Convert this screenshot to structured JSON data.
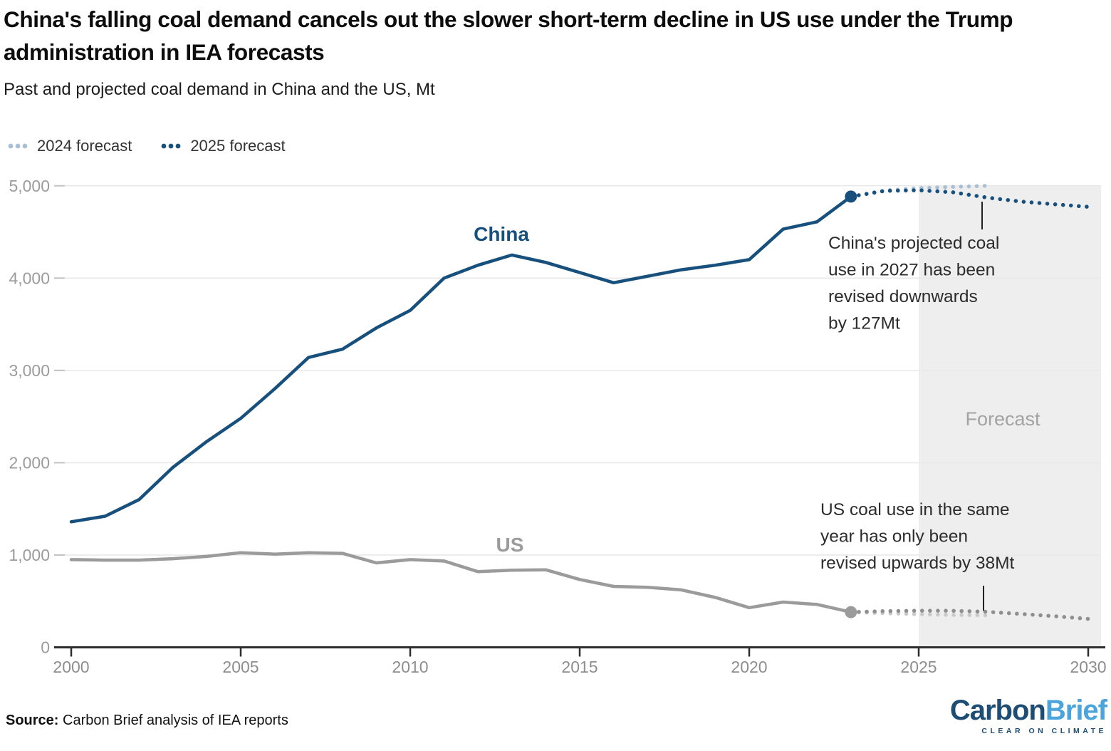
{
  "header": {
    "title": "China's falling coal demand cancels out the slower short-term decline in US use under the Trump administration in IEA forecasts",
    "subtitle": "Past and projected coal demand in China and the US, Mt"
  },
  "legend": {
    "items": [
      {
        "label": "2024 forecast",
        "color": "#a9c0d4"
      },
      {
        "label": "2025 forecast",
        "color": "#17507c"
      }
    ]
  },
  "annotations": [
    {
      "id": "china",
      "lines": [
        "China's projected coal",
        "use in 2027 has been",
        "revised downwards",
        "by 127Mt"
      ]
    },
    {
      "id": "us",
      "lines": [
        "US coal use in the same",
        "year has only been",
        "revised upwards by 38Mt"
      ]
    }
  ],
  "source": {
    "label": "Source:",
    "text": "Carbon Brief analysis of IEA reports"
  },
  "logo": {
    "part1": "Carbon",
    "part2": "Brief",
    "tagline": "CLEAR ON CLIMATE"
  },
  "chart_data": {
    "type": "line",
    "unit": "Mt",
    "xlim": [
      2000,
      2030
    ],
    "ylim": [
      0,
      5000
    ],
    "x_ticks": [
      2000,
      2005,
      2010,
      2015,
      2020,
      2025,
      2030
    ],
    "y_ticks": [
      0,
      1000,
      2000,
      3000,
      4000,
      5000
    ],
    "grid": true,
    "forecast_region": {
      "start": 2025,
      "end": 2030,
      "label": "Forecast",
      "fill": "#eeeeee"
    },
    "colors": {
      "china": "#17507c",
      "china_light": "#a9c0d4",
      "us": "#9b9b9b",
      "us_light": "#c9c9c9"
    },
    "series": [
      {
        "name": "China 2024 forecast",
        "style": "dotted",
        "color": "#a9c0d4",
        "years": [
          2023,
          2024,
          2025,
          2026,
          2027
        ],
        "values": [
          4883,
          4950,
          4975,
          4988,
          5000
        ]
      },
      {
        "name": "US 2024 forecast",
        "style": "dotted",
        "color": "#c9c9c9",
        "years": [
          2023,
          2024,
          2025,
          2026,
          2027
        ],
        "values": [
          381,
          370,
          359,
          351,
          347
        ]
      },
      {
        "name": "China 2025 forecast",
        "style": "dotted",
        "color": "#17507c",
        "years": [
          2023,
          2024,
          2025,
          2026,
          2027,
          2028,
          2029,
          2030
        ],
        "values": [
          4883,
          4945,
          4952,
          4930,
          4873,
          4830,
          4800,
          4772
        ]
      },
      {
        "name": "US 2025 forecast",
        "style": "dotted",
        "color": "#8f8f8f",
        "years": [
          2023,
          2024,
          2025,
          2026,
          2027,
          2028,
          2029,
          2030
        ],
        "values": [
          381,
          392,
          397,
          396,
          385,
          362,
          337,
          308
        ]
      },
      {
        "name": "China",
        "style": "solid",
        "color": "#17507c",
        "label": "China",
        "years": [
          2000,
          2001,
          2002,
          2003,
          2004,
          2005,
          2006,
          2007,
          2008,
          2009,
          2010,
          2011,
          2012,
          2013,
          2014,
          2015,
          2016,
          2017,
          2018,
          2019,
          2020,
          2021,
          2022,
          2023
        ],
        "values": [
          1360,
          1420,
          1600,
          1950,
          2230,
          2480,
          2800,
          3140,
          3230,
          3460,
          3650,
          4000,
          4140,
          4250,
          4170,
          4060,
          3950,
          4020,
          4090,
          4140,
          4200,
          4530,
          4610,
          4883
        ]
      },
      {
        "name": "US",
        "style": "solid",
        "color": "#9b9b9b",
        "label": "US",
        "years": [
          2000,
          2001,
          2002,
          2003,
          2004,
          2005,
          2006,
          2007,
          2008,
          2009,
          2010,
          2011,
          2012,
          2013,
          2014,
          2015,
          2016,
          2017,
          2018,
          2019,
          2020,
          2021,
          2022,
          2023
        ],
        "values": [
          950,
          945,
          945,
          960,
          985,
          1025,
          1010,
          1025,
          1018,
          915,
          950,
          935,
          820,
          835,
          840,
          735,
          660,
          650,
          622,
          540,
          430,
          490,
          465,
          381
        ]
      }
    ],
    "endpoint_markers": [
      {
        "series": "China",
        "year": 2023,
        "value": 4883,
        "color": "#17507c"
      },
      {
        "series": "US",
        "year": 2023,
        "value": 381,
        "color": "#9b9b9b"
      }
    ]
  }
}
